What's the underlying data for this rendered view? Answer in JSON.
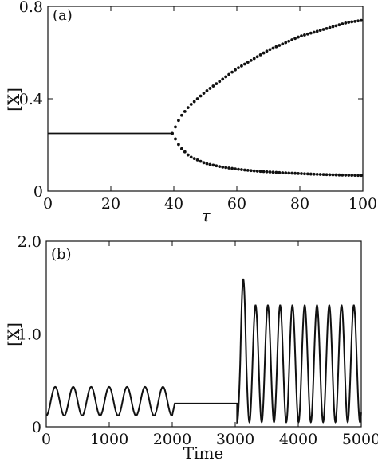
{
  "chart_data": [
    {
      "type": "scatter",
      "panel_label": "(a)",
      "xlabel": "τ",
      "ylabel": "[X]",
      "xlim": [
        0,
        100
      ],
      "ylim": [
        0,
        0.8
      ],
      "xticks": [
        "0",
        "20",
        "40",
        "60",
        "80",
        "100"
      ],
      "yticks": [
        "0",
        "0.4",
        "0.8"
      ],
      "grid": false,
      "series": [
        {
          "label": "steady state",
          "x": [
            0,
            39.5
          ],
          "y": [
            0.25,
            0.25
          ]
        },
        {
          "label": "upper branch",
          "x": [
            39.5,
            42,
            45,
            50,
            55,
            60,
            65,
            70,
            75,
            80,
            85,
            90,
            95,
            100
          ],
          "y": [
            0.25,
            0.32,
            0.37,
            0.43,
            0.48,
            0.53,
            0.57,
            0.61,
            0.64,
            0.67,
            0.69,
            0.71,
            0.73,
            0.74
          ]
        },
        {
          "label": "lower branch",
          "x": [
            39.5,
            42,
            45,
            50,
            55,
            60,
            65,
            70,
            75,
            80,
            85,
            90,
            95,
            100
          ],
          "y": [
            0.25,
            0.19,
            0.15,
            0.12,
            0.105,
            0.095,
            0.088,
            0.083,
            0.079,
            0.076,
            0.073,
            0.071,
            0.069,
            0.068
          ]
        }
      ]
    },
    {
      "type": "line",
      "panel_label": "(b)",
      "xlabel": "Time",
      "ylabel": "[X]",
      "xlim": [
        0,
        5000
      ],
      "ylim": [
        0,
        2.0
      ],
      "xticks": [
        "0",
        "1000",
        "2000",
        "3000",
        "4000",
        "5000"
      ],
      "yticks": [
        "0",
        "1.0",
        "2.0"
      ],
      "grid": false,
      "segments": [
        {
          "t_start": 0,
          "t_end": 2000,
          "kind": "oscillation",
          "period": 285,
          "min": 0.12,
          "max": 0.43
        },
        {
          "t_start": 2040,
          "t_end": 3030,
          "kind": "steady",
          "value": 0.25
        },
        {
          "t_start": 3030,
          "t_end": 5000,
          "kind": "oscillation",
          "period": 195,
          "min": 0.05,
          "max": 1.31,
          "first_peak": 1.59
        }
      ]
    }
  ]
}
